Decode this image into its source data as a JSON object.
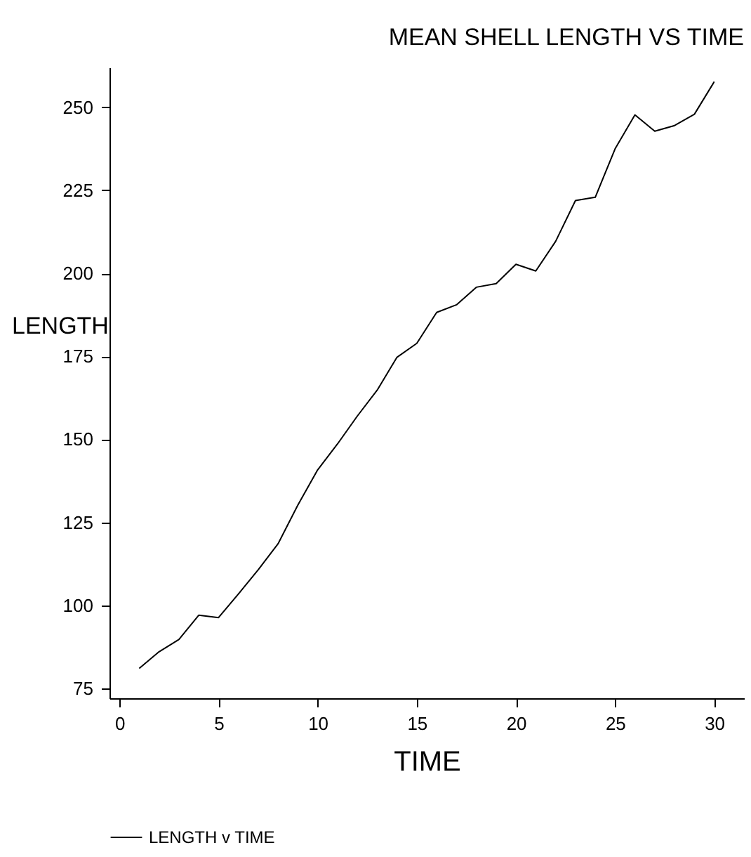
{
  "chart_data": {
    "type": "line",
    "title": "MEAN SHELL LENGTH VS TIME",
    "xlabel": "TIME",
    "ylabel": "LENGTH",
    "x": [
      1,
      2,
      3,
      4,
      5,
      6,
      7,
      8,
      9,
      10,
      11,
      12,
      13,
      14,
      15,
      16,
      17,
      18,
      19,
      20,
      21,
      22,
      23,
      24,
      25,
      26,
      27,
      28,
      29,
      30
    ],
    "series": [
      {
        "name": "LENGTH v TIME",
        "color": "#000000",
        "values": [
          81,
          86,
          89.7,
          97,
          96.3,
          103.4,
          110.7,
          118.5,
          130.2,
          140.8,
          148.6,
          157,
          164.8,
          174.7,
          178.9,
          188.2,
          190.5,
          195.8,
          196.9,
          202.7,
          200.7,
          209.6,
          221.9,
          222.9,
          237.5,
          247.7,
          242.8,
          244.5,
          247.9,
          257.7
        ]
      }
    ],
    "xlim": [
      -0.5,
      31.5
    ],
    "xticks": [
      0,
      5,
      10,
      15,
      20,
      25,
      30
    ],
    "ylim": [
      72,
      262
    ],
    "yticks": [
      75,
      100,
      125,
      150,
      175,
      200,
      225,
      250
    ],
    "grid": false,
    "legend": "bottom",
    "line_style": "solid"
  }
}
